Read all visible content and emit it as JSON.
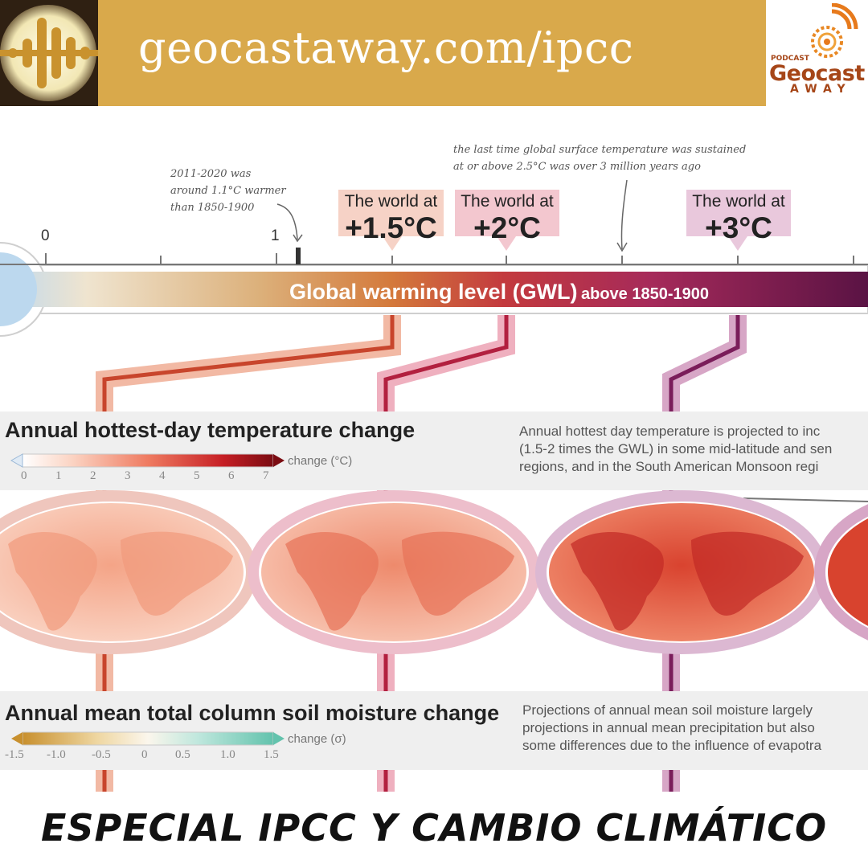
{
  "banner": {
    "url": "geocastaway.com/ipcc",
    "icon": "waveform-icon"
  },
  "logo": {
    "small": "PODCAST",
    "name": "Geocast",
    "sub": "AWAY",
    "icon": "ammonite-shell-icon"
  },
  "annotations": {
    "left": [
      "2011-2020 was",
      "around 1.1°C warmer",
      "than 1850-1900"
    ],
    "top": [
      "the last time global surface temperature was sustained",
      "at or above 2.5°C was over 3 million years ago"
    ]
  },
  "thermometer": {
    "ticks": [
      "0",
      "1"
    ],
    "label_main": "Global warming level (GWL)",
    "label_sub": "above 1850-1900"
  },
  "worlds": [
    {
      "line1": "The world at",
      "line2": "+1.5°C",
      "color": "#f6d2c6"
    },
    {
      "line1": "The world at",
      "line2": "+2°C",
      "color": "#f3c7cf"
    },
    {
      "line1": "The world at",
      "line2": "+3°C",
      "color": "#e9c8dc"
    }
  ],
  "temperature_panel": {
    "title": "Annual hottest-day temperature change",
    "unit": "change (°C)",
    "ticks": [
      "0",
      "1",
      "2",
      "3",
      "4",
      "5",
      "6",
      "7"
    ],
    "description": [
      "Annual hottest day temperature is projected to inc",
      "(1.5-2 times the GWL) in some mid-latitude and sen",
      "regions, and in the South American Monsoon regi"
    ]
  },
  "soil_panel": {
    "title": "Annual mean total column soil moisture change",
    "unit": "change (σ)",
    "ticks": [
      "-1.5",
      "-1.0",
      "-0.5",
      "0",
      "0.5",
      "1.0",
      "1.5"
    ],
    "description": [
      "Projections of annual mean soil moisture largely",
      "projections in annual mean precipitation but also",
      "some differences due to the influence of evapotra"
    ]
  },
  "footer": {
    "title": "ESPECIAL IPCC Y CAMBIO CLIMÁTICO"
  }
}
